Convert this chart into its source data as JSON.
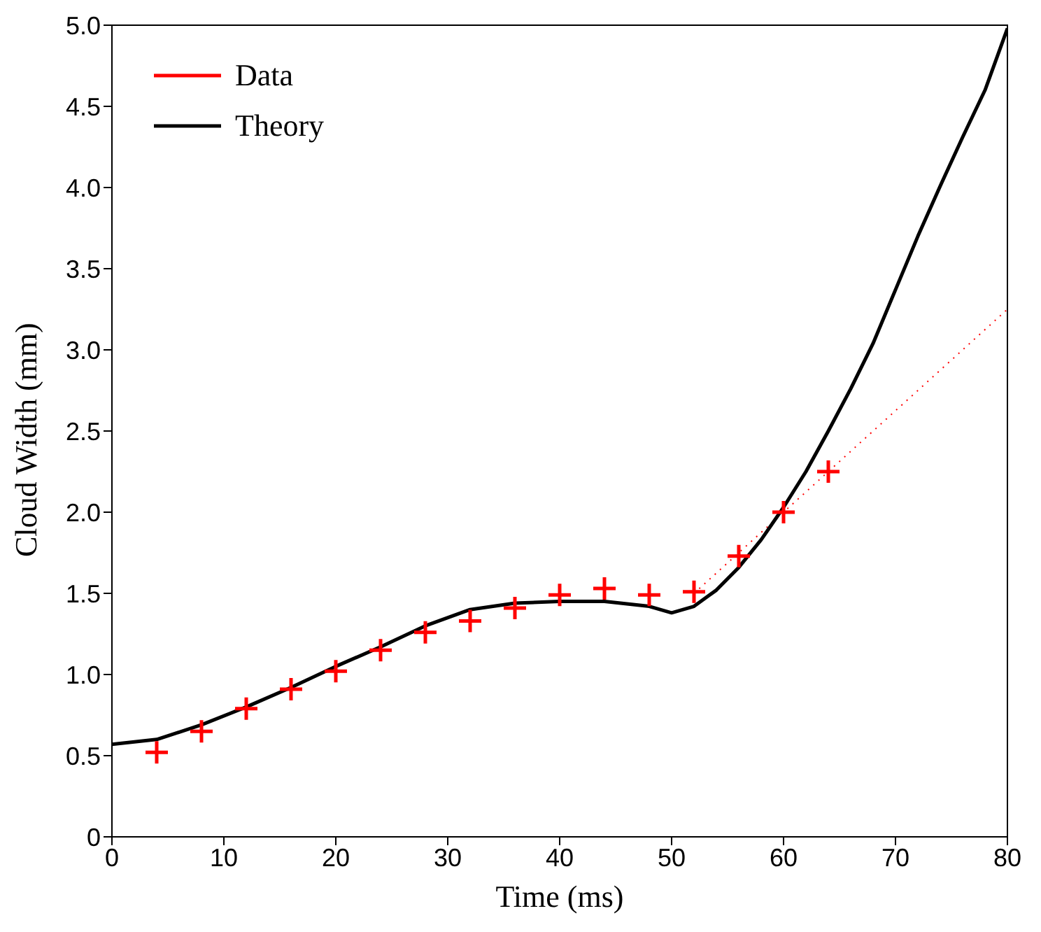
{
  "chart_data": {
    "type": "line",
    "xlabel": "Time (ms)",
    "ylabel": "Cloud Width (mm)",
    "xlim": [
      0,
      80
    ],
    "xticks": [
      0,
      10,
      20,
      30,
      40,
      50,
      60,
      70,
      80
    ],
    "ylim": [
      0,
      5
    ],
    "yticks": [
      0,
      {
        "value": 0.5,
        "label": "0.5"
      },
      {
        "value": 1,
        "label": "1.0"
      },
      {
        "value": 1.5,
        "label": "1.5"
      },
      {
        "value": 2,
        "label": "2.0"
      },
      {
        "value": 2.5,
        "label": "2.5"
      },
      {
        "value": 3,
        "label": "3.0"
      },
      {
        "value": 3.5,
        "label": "3.5"
      },
      {
        "value": 4,
        "label": "4.0"
      },
      {
        "value": 4.5,
        "label": "4.5"
      },
      {
        "value": 5,
        "label": "5.0"
      }
    ],
    "grid": false,
    "legend": "top left",
    "series": [
      {
        "name": "Data",
        "type": "scatter",
        "marker": "cross",
        "color": "#ff0000",
        "x": [
          4,
          8,
          12,
          16,
          20,
          24,
          28,
          32,
          36,
          40,
          44,
          48,
          52,
          56,
          60,
          64
        ],
        "values": [
          0.52,
          0.65,
          0.79,
          0.91,
          1.02,
          1.15,
          1.26,
          1.33,
          1.41,
          1.49,
          1.53,
          1.49,
          1.51,
          1.73,
          2.0,
          2.25
        ]
      },
      {
        "line_style": "dotted",
        "color": "#ff0000",
        "x": [
          52,
          80
        ],
        "values": [
          1.5,
          3.25
        ]
      },
      {
        "name": "Theory",
        "line_style": "solid",
        "color": "#000000",
        "x": [
          0,
          4,
          8,
          12,
          16,
          20,
          24,
          28,
          32,
          36,
          40,
          44,
          48,
          50,
          52,
          54,
          56,
          58,
          60,
          62,
          64,
          66,
          68,
          70,
          72,
          74,
          76,
          78,
          80
        ],
        "values": [
          0.57,
          0.6,
          0.69,
          0.8,
          0.92,
          1.05,
          1.17,
          1.3,
          1.4,
          1.44,
          1.45,
          1.45,
          1.42,
          1.38,
          1.42,
          1.52,
          1.66,
          1.83,
          2.03,
          2.25,
          2.5,
          2.76,
          3.04,
          3.37,
          3.7,
          4.01,
          4.31,
          4.6,
          4.98
        ]
      }
    ]
  }
}
